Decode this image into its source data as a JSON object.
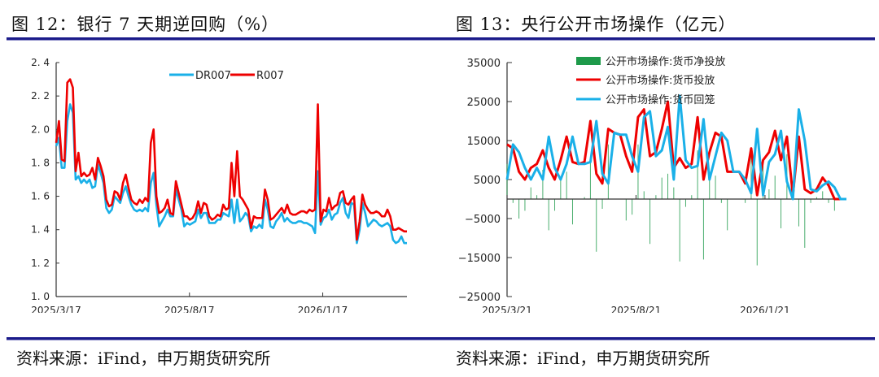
{
  "left": {
    "title": "图 12：银行 7 天期逆回购（%）",
    "source": "资料来源：iFind，申万期货研究所"
  },
  "right": {
    "title": "图 13：央行公开市场操作（亿元）",
    "source": "资料来源：iFind，申万期货研究所"
  },
  "colors": {
    "dr007": "#1ab0e8",
    "r007": "#ee0000",
    "net": "#1e9a4a",
    "rule": "#1b1b8a"
  },
  "chart_data": [
    {
      "type": "line",
      "title": "银行 7 天期逆回购（%）",
      "ylim": [
        1.0,
        2.4
      ],
      "yticks": [
        "1.0",
        "1.2",
        "1.4",
        "1.6",
        "1.8",
        "2.0",
        "2.2",
        "2.4"
      ],
      "xticks": [
        "2025/3/17",
        "2025/8/17",
        "2026/1/17"
      ],
      "legend": "top-center",
      "series": [
        {
          "name": "DR007",
          "values": [
            1.9,
            1.95,
            1.77,
            1.77,
            2.05,
            2.15,
            2.1,
            1.7,
            1.72,
            1.68,
            1.7,
            1.68,
            1.7,
            1.65,
            1.66,
            1.79,
            1.74,
            1.68,
            1.53,
            1.5,
            1.52,
            1.6,
            1.58,
            1.56,
            1.62,
            1.66,
            1.6,
            1.55,
            1.52,
            1.51,
            1.52,
            1.51,
            1.53,
            1.51,
            1.68,
            1.74,
            1.55,
            1.42,
            1.45,
            1.48,
            1.52,
            1.48,
            1.48,
            1.64,
            1.58,
            1.52,
            1.42,
            1.44,
            1.43,
            1.44,
            1.45,
            1.52,
            1.47,
            1.5,
            1.5,
            1.44,
            1.44,
            1.44,
            1.46,
            1.46,
            1.5,
            1.49,
            1.48,
            1.58,
            1.44,
            1.58,
            1.45,
            1.47,
            1.5,
            1.48,
            1.39,
            1.42,
            1.41,
            1.43,
            1.41,
            1.58,
            1.52,
            1.42,
            1.41,
            1.45,
            1.47,
            1.5,
            1.45,
            1.47,
            1.45,
            1.44,
            1.44,
            1.45,
            1.45,
            1.44,
            1.44,
            1.43,
            1.42,
            1.38,
            1.75,
            1.43,
            1.47,
            1.48,
            1.52,
            1.46,
            1.49,
            1.5,
            1.56,
            1.59,
            1.5,
            1.47,
            1.56,
            1.55,
            1.32,
            1.4,
            1.56,
            1.5,
            1.42,
            1.44,
            1.46,
            1.45,
            1.43,
            1.42,
            1.43,
            1.44,
            1.42,
            1.34,
            1.32,
            1.33,
            1.36,
            1.32,
            1.32
          ]
        },
        {
          "name": "R007",
          "values": [
            1.92,
            2.05,
            1.82,
            1.81,
            2.28,
            2.3,
            2.25,
            1.75,
            1.86,
            1.72,
            1.74,
            1.72,
            1.73,
            1.77,
            1.7,
            1.83,
            1.78,
            1.72,
            1.58,
            1.54,
            1.55,
            1.63,
            1.62,
            1.58,
            1.68,
            1.73,
            1.65,
            1.58,
            1.56,
            1.55,
            1.58,
            1.56,
            1.59,
            1.57,
            1.92,
            2.0,
            1.6,
            1.5,
            1.51,
            1.53,
            1.58,
            1.5,
            1.49,
            1.69,
            1.62,
            1.55,
            1.48,
            1.48,
            1.46,
            1.47,
            1.5,
            1.57,
            1.5,
            1.56,
            1.55,
            1.48,
            1.46,
            1.47,
            1.49,
            1.48,
            1.55,
            1.52,
            1.53,
            1.8,
            1.6,
            1.87,
            1.6,
            1.58,
            1.55,
            1.52,
            1.41,
            1.48,
            1.47,
            1.47,
            1.47,
            1.64,
            1.58,
            1.46,
            1.47,
            1.49,
            1.51,
            1.53,
            1.5,
            1.55,
            1.5,
            1.49,
            1.49,
            1.5,
            1.51,
            1.51,
            1.5,
            1.52,
            1.51,
            1.52,
            2.15,
            1.45,
            1.52,
            1.51,
            1.59,
            1.52,
            1.54,
            1.55,
            1.62,
            1.63,
            1.56,
            1.55,
            1.58,
            1.6,
            1.34,
            1.45,
            1.61,
            1.55,
            1.52,
            1.5,
            1.5,
            1.51,
            1.5,
            1.48,
            1.48,
            1.52,
            1.48,
            1.4,
            1.4,
            1.41,
            1.4,
            1.39,
            1.39
          ]
        }
      ]
    },
    {
      "type": "bar+line",
      "title": "央行公开市场操作（亿元）",
      "ylim": [
        -25000,
        35000
      ],
      "yticks": [
        "-25000",
        "-15000",
        "-5000",
        "5000",
        "15000",
        "25000",
        "35000"
      ],
      "xticks": [
        "2025/3/21",
        "2025/8/21",
        "2026/1/21"
      ],
      "legend": "top-center",
      "series": [
        {
          "name": "公开市场操作:货币净投放",
          "kind": "bar",
          "values": [
            9000,
            -1000,
            -5000,
            -3000,
            3000,
            1000,
            7500,
            -8000,
            -3000,
            5000,
            7000,
            -6500,
            0,
            500,
            10500,
            -13500,
            -2500,
            14000,
            0,
            0,
            -5500,
            -4000,
            14000,
            2000,
            -11500,
            1000,
            5500,
            6500,
            3000,
            -16000,
            -2000,
            1000,
            12500,
            -15500,
            7000,
            6000,
            -1000,
            -8000,
            0,
            0,
            -1000,
            11500,
            -17000,
            9000,
            2500,
            6000,
            -7500,
            11500,
            1000,
            -7000,
            -12500,
            -1000,
            500,
            2000,
            -1000,
            -3000,
            0,
            0
          ]
        },
        {
          "name": "公开市场操作:货币投放",
          "kind": "line",
          "values": [
            14000,
            13000,
            7000,
            5000,
            8000,
            9000,
            12500,
            8000,
            5000,
            10000,
            16000,
            9500,
            9000,
            9500,
            20000,
            6500,
            4000,
            18000,
            17000,
            16500,
            11000,
            7000,
            21000,
            23000,
            11000,
            12000,
            18000,
            25000,
            8000,
            10500,
            8000,
            9000,
            21000,
            5000,
            12000,
            17000,
            16000,
            7000,
            7000,
            7000,
            4000,
            13000,
            1000,
            10000,
            12000,
            17500,
            10000,
            16000,
            1000,
            16000,
            2500,
            1500,
            2500,
            5500,
            3500,
            0,
            0,
            0
          ]
        },
        {
          "name": "公开市场操作:货币回笼",
          "kind": "line",
          "values": [
            5000,
            14000,
            12000,
            8000,
            5000,
            8000,
            5000,
            16000,
            8000,
            5000,
            9000,
            16000,
            9000,
            9000,
            9500,
            20000,
            6500,
            4000,
            17000,
            16500,
            16500,
            11000,
            7000,
            21000,
            22500,
            11000,
            12500,
            18500,
            5000,
            26500,
            10000,
            8000,
            8500,
            20500,
            5000,
            11000,
            17000,
            15000,
            7000,
            7000,
            5000,
            1500,
            18000,
            1000,
            9500,
            11500,
            17500,
            4500,
            0,
            23000,
            15000,
            2500,
            2000,
            3500,
            4500,
            3000,
            0,
            0
          ]
        }
      ]
    }
  ]
}
